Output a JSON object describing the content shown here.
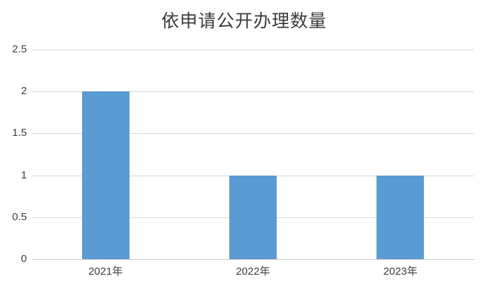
{
  "chart_data": {
    "type": "bar",
    "title": "依申请公开办理数量",
    "categories": [
      "2021年",
      "2022年",
      "2023年"
    ],
    "values": [
      2,
      1,
      1
    ],
    "xlabel": "",
    "ylabel": "",
    "ylim": [
      0,
      2.5
    ],
    "yticks": [
      0,
      0.5,
      1,
      1.5,
      2,
      2.5
    ],
    "ytick_labels": [
      "0",
      "0.5",
      "1",
      "1.5",
      "2",
      "2.5"
    ],
    "grid": true,
    "legend_position": "none",
    "bar_color": "#5b9bd5",
    "gridline_color": "#d9d9d9",
    "axis_text_color": "#404040",
    "title_color": "#3c3c3c",
    "background_color": "#ffffff"
  }
}
